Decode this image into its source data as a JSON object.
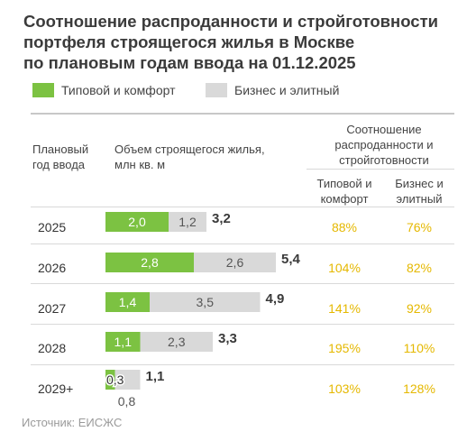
{
  "title_lines": [
    "Соотношение распроданности и стройготовности",
    "портфеля строящегося жилья в Москве",
    "по плановым годам ввода на 01.12.2025"
  ],
  "legend": [
    {
      "label": "Типовой и комфорт",
      "color": "#7cc242"
    },
    {
      "label": "Бизнес и элитный",
      "color": "#d9d9d9"
    }
  ],
  "headers": {
    "year_lines": [
      "Плановый",
      "год ввода"
    ],
    "volume_lines": [
      "Объем строящегося жилья,",
      "млн кв. м"
    ],
    "ratio_lines": [
      "Соотношение",
      "распроданности и",
      "стройготовности"
    ],
    "ratio_typ_lines": [
      "Типовой и",
      "комфорт"
    ],
    "ratio_biz_lines": [
      "Бизнес и",
      "элитный"
    ]
  },
  "chart_data": {
    "type": "bar",
    "orientation": "horizontal",
    "stacked": true,
    "categories": [
      "2025",
      "2026",
      "2027",
      "2028",
      "2029+"
    ],
    "series": [
      {
        "name": "Типовой и комфорт",
        "values": [
          2.0,
          2.8,
          1.4,
          1.1,
          0.3
        ],
        "labels": [
          "2,0",
          "2,8",
          "1,4",
          "1,1",
          "0,3"
        ],
        "color": "#7cc242"
      },
      {
        "name": "Бизнес и элитный",
        "values": [
          1.2,
          2.6,
          3.5,
          2.3,
          0.8
        ],
        "labels": [
          "1,2",
          "2,6",
          "3,5",
          "2,3",
          "0,8"
        ],
        "color": "#d9d9d9"
      }
    ],
    "totals": [
      3.2,
      5.4,
      4.9,
      3.3,
      1.1
    ],
    "total_labels": [
      "3,2",
      "5,4",
      "4,9",
      "3,3",
      "1,1"
    ],
    "ratios": {
      "typ": [
        "88%",
        "104%",
        "141%",
        "195%",
        "103%"
      ],
      "biz": [
        "76%",
        "82%",
        "92%",
        "110%",
        "128%"
      ]
    },
    "ratio_color": "#e5b800",
    "label_color_typ": "#ffffff",
    "label_color_biz": "#555555",
    "total_color": "#3a3a3a"
  },
  "source": "Источник: ЕИСЖС"
}
